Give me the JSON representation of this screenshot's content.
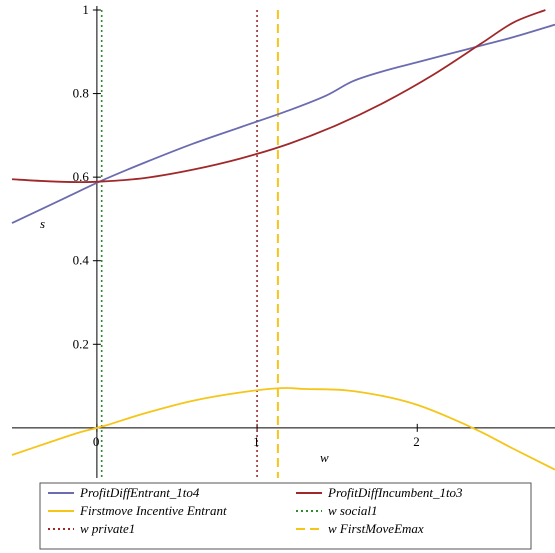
{
  "chart_data": {
    "type": "line",
    "title": "",
    "xlabel": "w",
    "ylabel": "s",
    "xlim": [
      -0.53,
      2.86
    ],
    "ylim": [
      -0.12,
      1.0
    ],
    "grid": false,
    "legend_position": "bottom",
    "x_ticks": [
      0,
      1,
      2
    ],
    "x_tick_labels": [
      "0",
      "1",
      "2"
    ],
    "y_ticks": [
      0.2,
      0.4,
      0.6,
      0.8,
      1.0
    ],
    "y_tick_labels": [
      "0.2",
      "0.4",
      "0.6",
      "0.8",
      "1"
    ],
    "series": [
      {
        "name": "ProfitDiffEntrant_1to4",
        "color": "#6b6bb0",
        "style": "solid",
        "x": [
          -0.53,
          -0.2,
          0.05,
          0.3,
          0.6,
          0.9,
          1.2,
          1.43,
          1.6,
          1.8,
          2.0,
          2.2,
          2.4,
          2.6,
          2.86
        ],
        "y": [
          0.49,
          0.55,
          0.595,
          0.635,
          0.68,
          0.72,
          0.76,
          0.795,
          0.83,
          0.855,
          0.875,
          0.895,
          0.915,
          0.935,
          0.965
        ]
      },
      {
        "name": "ProfitDiffIncumbent_1to3",
        "color": "#a0282a",
        "style": "solid",
        "x": [
          -0.53,
          -0.3,
          -0.1,
          0.05,
          0.3,
          0.6,
          0.9,
          1.2,
          1.5,
          1.8,
          2.1,
          2.4,
          2.6,
          2.8
        ],
        "y": [
          0.595,
          0.59,
          0.588,
          0.59,
          0.598,
          0.618,
          0.645,
          0.68,
          0.725,
          0.78,
          0.845,
          0.92,
          0.97,
          1.0
        ]
      },
      {
        "name": "Firstmove Incentive Entrant",
        "color": "#f5c518",
        "style": "solid",
        "x": [
          -0.53,
          -0.3,
          -0.1,
          0.05,
          0.3,
          0.6,
          0.9,
          1.15,
          1.3,
          1.55,
          1.8,
          2.0,
          2.2,
          2.4,
          2.6,
          2.86
        ],
        "y": [
          -0.065,
          -0.035,
          -0.01,
          0.005,
          0.035,
          0.065,
          0.085,
          0.095,
          0.093,
          0.09,
          0.075,
          0.055,
          0.025,
          -0.01,
          -0.05,
          -0.1
        ]
      }
    ],
    "vertical_lines": [
      {
        "name": "w social1",
        "x": 0.03,
        "color": "#2e8b2e",
        "style": "dotted"
      },
      {
        "name": "w private1",
        "x": 1.0,
        "color": "#a0282a",
        "style": "dotted"
      },
      {
        "name": "w FirstMoveEmax",
        "x": 1.13,
        "color": "#f5c518",
        "style": "dashed"
      }
    ]
  }
}
